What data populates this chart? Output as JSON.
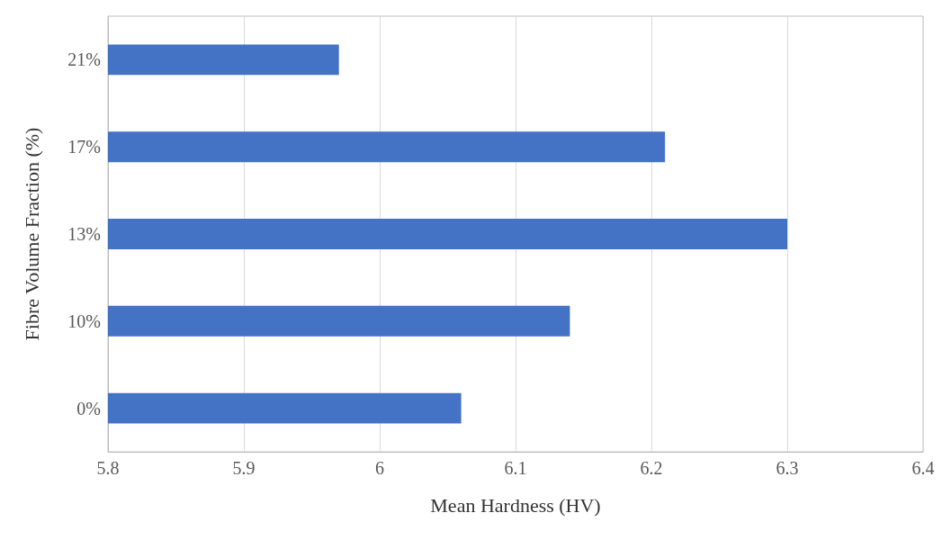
{
  "chart_data": {
    "type": "bar",
    "orientation": "horizontal",
    "xlabel": "Mean Hardness (HV)",
    "ylabel": "Fibre Volume Fraction (%)",
    "categories": [
      "21%",
      "17%",
      "13%",
      "10%",
      "0%"
    ],
    "values": [
      5.97,
      6.21,
      6.3,
      6.14,
      6.06
    ],
    "color": "#4472c4",
    "xlim": [
      5.8,
      6.4
    ],
    "xticks": [
      5.8,
      5.9,
      6,
      6.1,
      6.2,
      6.3,
      6.4
    ],
    "grid": "x"
  }
}
